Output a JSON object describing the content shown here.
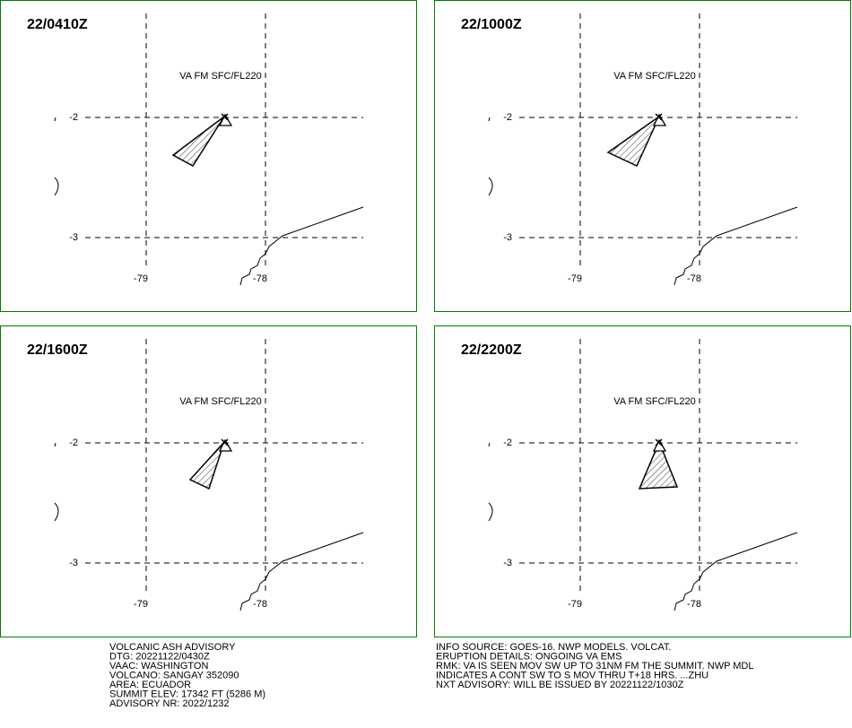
{
  "panels": [
    {
      "time": "22/0410Z",
      "layer": "VA FM SFC/FL220",
      "lat_labels": [
        "-2",
        "-3"
      ],
      "lon_labels": [
        "-79",
        "-78"
      ]
    },
    {
      "time": "22/1000Z",
      "layer": "VA FM SFC/FL220",
      "lat_labels": [
        "-2",
        "-3"
      ],
      "lon_labels": [
        "-79",
        "-78"
      ]
    },
    {
      "time": "22/1600Z",
      "layer": "VA FM SFC/FL220",
      "lat_labels": [
        "-2",
        "-3"
      ],
      "lon_labels": [
        "-79",
        "-78"
      ]
    },
    {
      "time": "22/2200Z",
      "layer": "VA FM SFC/FL220",
      "lat_labels": [
        "-2",
        "-3"
      ],
      "lon_labels": [
        "-79",
        "-78"
      ]
    }
  ],
  "advisory_left": [
    "VOLCANIC ASH ADVISORY",
    "DTG: 20221122/0430Z",
    "VAAC: WASHINGTON",
    "VOLCANO: SANGAY 352090",
    "AREA: ECUADOR",
    "SUMMIT ELEV: 17342 FT (5286 M)",
    "ADVISORY NR: 2022/1232"
  ],
  "advisory_right": [
    "INFO SOURCE: GOES-16. NWP MODELS. VOLCAT.",
    "ERUPTION DETAILS: ONGOING VA EMS",
    "RMK: VA IS SEEN MOV SW UP TO 31NM FM THE SUMMIT. NWP MDL",
    "INDICATES A CONT SW TO S MOV THRU T+18 HRS. ...ZHU",
    "NXT ADVISORY: WILL BE ISSUED BY 20221122/1030Z"
  ]
}
